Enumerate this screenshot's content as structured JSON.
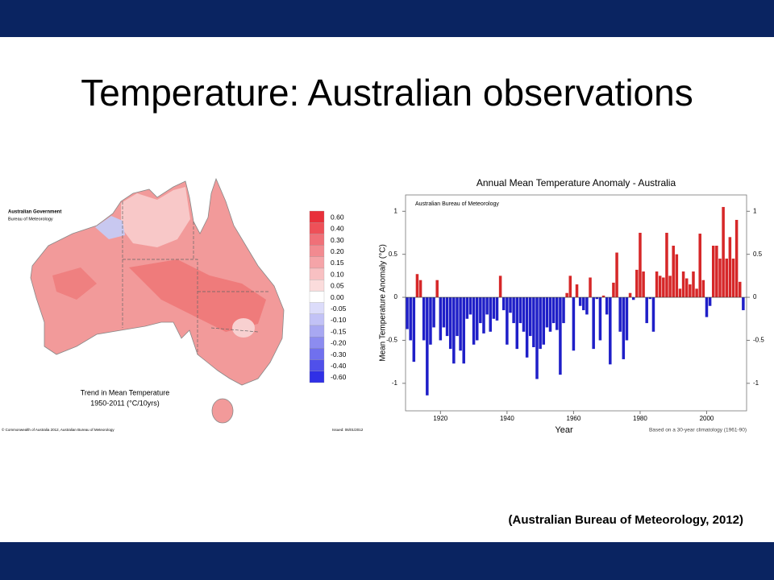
{
  "slide_title": "Temperature: Australian observations",
  "citation": "(Australian Bureau of Meteorology, 2012)",
  "map": {
    "agency": "Australian Government",
    "bureau": "Bureau of Meteorology",
    "caption": "Trend in Mean Temperature",
    "period": "1950-2011 (°C/10yrs)",
    "copyright": "© Commonwealth of Australia 2012, Australian Bureau of Meteorology",
    "issued": "Issued: 06/01/2012",
    "legend": {
      "levels": [
        "0.60",
        "0.40",
        "0.30",
        "0.20",
        "0.15",
        "0.10",
        "0.05",
        "0.00",
        "-0.05",
        "-0.10",
        "-0.15",
        "-0.20",
        "-0.30",
        "-0.40",
        "-0.60"
      ],
      "colors": [
        "#e8303a",
        "#ee5058",
        "#f07078",
        "#f28a90",
        "#f5a4a8",
        "#f8c0c2",
        "#fbdcdc",
        "#ffffff",
        "#dcdcfa",
        "#c2c2f6",
        "#a8a8f2",
        "#8c8cf0",
        "#7070ee",
        "#5050ea",
        "#3030e6"
      ]
    }
  },
  "chart_data": {
    "type": "bar",
    "title": "Annual Mean Temperature Anomaly - Australia",
    "source_note": "Australian Bureau of Meteorology",
    "x_label": "Year",
    "y_label": "Mean Temperature Anomaly (°C)",
    "footnote": "Based on a 30-year climatology (1961-90)",
    "x": [
      1910,
      1911,
      1912,
      1913,
      1914,
      1915,
      1916,
      1917,
      1918,
      1919,
      1920,
      1921,
      1922,
      1923,
      1924,
      1925,
      1926,
      1927,
      1928,
      1929,
      1930,
      1931,
      1932,
      1933,
      1934,
      1935,
      1936,
      1937,
      1938,
      1939,
      1940,
      1941,
      1942,
      1943,
      1944,
      1945,
      1946,
      1947,
      1948,
      1949,
      1950,
      1951,
      1952,
      1953,
      1954,
      1955,
      1956,
      1957,
      1958,
      1959,
      1960,
      1961,
      1962,
      1963,
      1964,
      1965,
      1966,
      1967,
      1968,
      1969,
      1970,
      1971,
      1972,
      1973,
      1974,
      1975,
      1976,
      1977,
      1978,
      1979,
      1980,
      1981,
      1982,
      1983,
      1984,
      1985,
      1986,
      1987,
      1988,
      1989,
      1990,
      1991,
      1992,
      1993,
      1994,
      1995,
      1996,
      1997,
      1998,
      1999,
      2000,
      2001,
      2002,
      2003,
      2004,
      2005,
      2006,
      2007,
      2008,
      2009,
      2010,
      2011
    ],
    "values": [
      -0.37,
      -0.5,
      -0.75,
      0.27,
      0.2,
      -0.5,
      -1.14,
      -0.55,
      -0.35,
      0.2,
      -0.5,
      -0.35,
      -0.45,
      -0.6,
      -0.77,
      -0.45,
      -0.62,
      -0.77,
      -0.25,
      -0.2,
      -0.55,
      -0.5,
      -0.3,
      -0.42,
      -0.2,
      -0.4,
      -0.25,
      -0.27,
      0.25,
      -0.15,
      -0.55,
      -0.18,
      -0.3,
      -0.6,
      -0.3,
      -0.4,
      -0.7,
      -0.45,
      -0.58,
      -0.95,
      -0.6,
      -0.55,
      -0.35,
      -0.4,
      -0.3,
      -0.38,
      -0.9,
      -0.3,
      0.05,
      0.25,
      -0.62,
      0.15,
      -0.1,
      -0.15,
      -0.2,
      0.23,
      -0.6,
      -0.02,
      -0.5,
      0.02,
      -0.2,
      -0.78,
      0.17,
      0.52,
      -0.4,
      -0.72,
      -0.5,
      0.05,
      -0.03,
      0.32,
      0.75,
      0.3,
      -0.3,
      -0.02,
      -0.4,
      0.3,
      0.25,
      0.23,
      0.75,
      0.25,
      0.6,
      0.5,
      0.1,
      0.3,
      0.22,
      0.15,
      0.3,
      0.1,
      0.74,
      0.2,
      -0.23,
      -0.1,
      0.6,
      0.6,
      0.45,
      1.05,
      0.45,
      0.7,
      0.45,
      0.9,
      0.18,
      -0.15
    ],
    "positive_color": "#d62728",
    "negative_color": "#1f1fc8",
    "xlim": [
      1909.5,
      2012
    ],
    "xticks": [
      1920,
      1940,
      1960,
      1980,
      2000
    ],
    "ylim": [
      -1.32,
      1.19
    ],
    "yticks": [
      -1,
      -0.5,
      0,
      0.5,
      1
    ],
    "right_axis_labels": true
  }
}
